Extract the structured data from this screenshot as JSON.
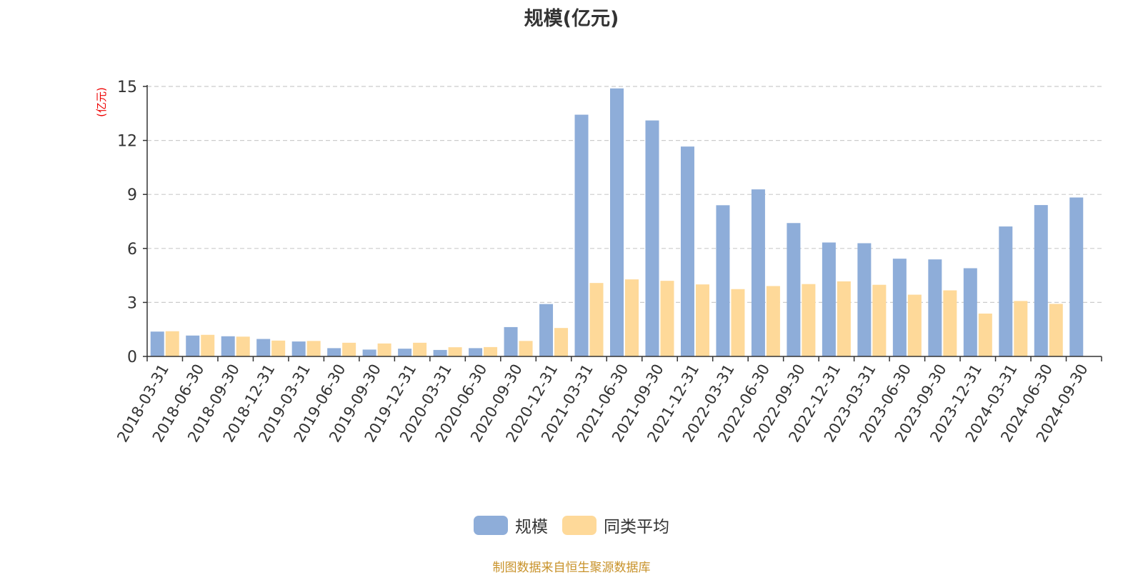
{
  "colors": {
    "series_1": "#8eadd9",
    "series_2": "#fed999",
    "axis": "#333333",
    "grid": "#cccccc",
    "unit_label": "#ee0000",
    "source": "#c8922a"
  },
  "chart_data": {
    "type": "bar",
    "title": "规模(亿元)",
    "ylabel": "(亿元)",
    "ylim": [
      0,
      15
    ],
    "yticks": [
      0,
      3,
      6,
      9,
      12,
      15
    ],
    "grid": true,
    "legend_position": "bottom-center",
    "categories": [
      "2018-03-31",
      "2018-06-30",
      "2018-09-30",
      "2018-12-31",
      "2019-03-31",
      "2019-06-30",
      "2019-09-30",
      "2019-12-31",
      "2020-03-31",
      "2020-06-30",
      "2020-09-30",
      "2020-12-31",
      "2021-03-31",
      "2021-06-30",
      "2021-09-30",
      "2021-12-31",
      "2022-03-31",
      "2022-06-30",
      "2022-09-30",
      "2022-12-31",
      "2023-03-31",
      "2023-06-30",
      "2023-09-30",
      "2023-12-31",
      "2024-03-31",
      "2024-06-30",
      "2024-09-30"
    ],
    "series": [
      {
        "name": "规模",
        "values": [
          1.38,
          1.16,
          1.12,
          0.97,
          0.83,
          0.46,
          0.38,
          0.43,
          0.36,
          0.46,
          1.63,
          2.91,
          13.43,
          14.89,
          13.11,
          11.66,
          8.4,
          9.28,
          7.41,
          6.33,
          6.29,
          5.43,
          5.39,
          4.9,
          7.22,
          8.41,
          8.83
        ]
      },
      {
        "name": "同类平均",
        "values": [
          1.4,
          1.2,
          1.1,
          0.88,
          0.86,
          0.76,
          0.72,
          0.76,
          0.51,
          0.52,
          0.86,
          1.58,
          4.08,
          4.28,
          4.2,
          4.0,
          3.74,
          3.91,
          4.02,
          4.17,
          3.98,
          3.43,
          3.67,
          2.38,
          3.08,
          2.92,
          null
        ]
      }
    ]
  },
  "legend": {
    "items": [
      "规模",
      "同类平均"
    ]
  },
  "footer": {
    "source_text": "制图数据来自恒生聚源数据库"
  }
}
